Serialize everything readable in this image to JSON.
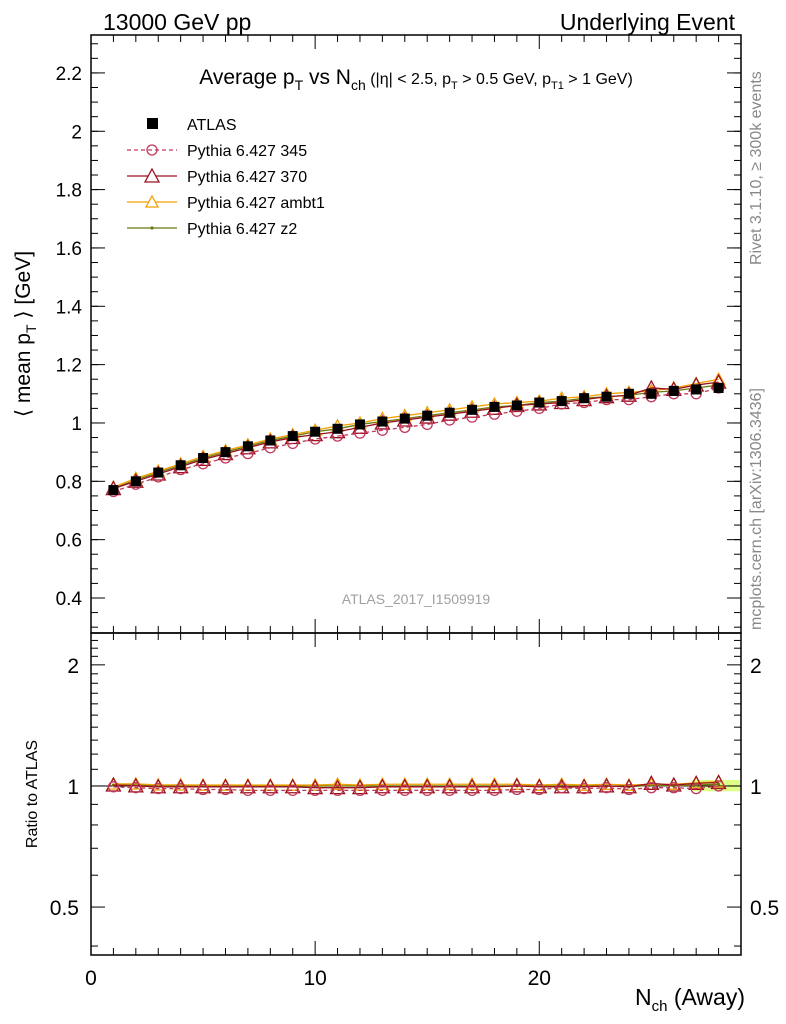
{
  "header": {
    "left": "13000 GeV pp",
    "right": "Underlying Event"
  },
  "side_labels": {
    "top": "Rivet 3.1.10, ≥ 300k events",
    "bottom": "mcplots.cern.ch [arXiv:1306.3436]"
  },
  "watermark": "ATLAS_2017_I1509919",
  "colors": {
    "atlas": "#000000",
    "p345": "#c0395a",
    "p370": "#9a1020",
    "ambt1": "#f0a000",
    "z2": "#6b7a10",
    "band": "#ddff88"
  },
  "chart_data": [
    {
      "type": "line",
      "title": {
        "prefix": "Average p",
        "sub1": "T",
        "mid": " vs N",
        "sub2": "ch",
        "cuts": " (|η| < 2.5, p",
        "sub3": "T",
        "cuts2": " > 0.5 GeV, p",
        "sub4": "T1",
        "cuts3": " > 1 GeV)"
      },
      "ylabel": {
        "pre": "⟨ mean p",
        "sub": "T",
        "post": " ⟩ [GeV]"
      },
      "xlim": [
        0,
        29
      ],
      "ylim": [
        0.28,
        2.33
      ],
      "yticks": [
        0.4,
        0.6,
        0.8,
        1,
        1.2,
        1.4,
        1.6,
        1.8,
        2,
        2.2
      ],
      "ytick_labels": [
        "0.4",
        "0.6",
        "0.8",
        "1",
        "1.2",
        "1.4",
        "1.6",
        "1.8",
        "2",
        "2.2"
      ],
      "legend_position": "top-left",
      "x": [
        1,
        2,
        3,
        4,
        5,
        6,
        7,
        8,
        9,
        10,
        11,
        12,
        13,
        14,
        15,
        16,
        17,
        18,
        19,
        20,
        21,
        22,
        23,
        24,
        25,
        26,
        27,
        28
      ],
      "series": [
        {
          "key": "atlas",
          "name": "ATLAS",
          "marker": "square",
          "values": [
            0.77,
            0.8,
            0.83,
            0.855,
            0.88,
            0.9,
            0.92,
            0.94,
            0.955,
            0.97,
            0.98,
            0.995,
            1.005,
            1.015,
            1.025,
            1.035,
            1.045,
            1.055,
            1.06,
            1.07,
            1.075,
            1.085,
            1.09,
            1.1,
            1.1,
            1.11,
            1.115,
            1.12
          ]
        },
        {
          "key": "p345",
          "name": "Pythia 6.427 345",
          "marker": "circle-open",
          "dash": true,
          "values": [
            0.765,
            0.79,
            0.815,
            0.84,
            0.86,
            0.88,
            0.895,
            0.915,
            0.93,
            0.945,
            0.955,
            0.965,
            0.975,
            0.985,
            0.995,
            1.01,
            1.02,
            1.03,
            1.04,
            1.05,
            1.065,
            1.07,
            1.08,
            1.08,
            1.09,
            1.1,
            1.1,
            1.12
          ]
        },
        {
          "key": "p370",
          "name": "Pythia 6.427 370",
          "marker": "triangle-open",
          "values": [
            0.775,
            0.8,
            0.825,
            0.85,
            0.875,
            0.895,
            0.915,
            0.935,
            0.95,
            0.96,
            0.97,
            0.985,
            1.0,
            1.01,
            1.02,
            1.03,
            1.04,
            1.05,
            1.06,
            1.065,
            1.07,
            1.08,
            1.09,
            1.095,
            1.12,
            1.115,
            1.13,
            1.14
          ]
        },
        {
          "key": "ambt1",
          "name": "Pythia 6.427 ambt1",
          "marker": "triangle-open",
          "values": [
            0.78,
            0.81,
            0.835,
            0.86,
            0.885,
            0.905,
            0.925,
            0.945,
            0.96,
            0.975,
            0.99,
            1.0,
            1.015,
            1.025,
            1.035,
            1.045,
            1.055,
            1.065,
            1.07,
            1.075,
            1.085,
            1.09,
            1.1,
            1.105,
            1.11,
            1.12,
            1.135,
            1.15
          ]
        },
        {
          "key": "z2",
          "name": "Pythia 6.427 z2",
          "marker": "dot",
          "values": [
            0.775,
            0.805,
            0.83,
            0.855,
            0.88,
            0.9,
            0.92,
            0.94,
            0.955,
            0.97,
            0.98,
            0.995,
            1.005,
            1.015,
            1.025,
            1.035,
            1.045,
            1.055,
            1.06,
            1.07,
            1.075,
            1.085,
            1.09,
            1.095,
            1.105,
            1.11,
            1.12,
            1.13
          ]
        }
      ]
    },
    {
      "type": "line",
      "ylabel": "Ratio to ATLAS",
      "xlabel": {
        "pre": "N",
        "sub": "ch",
        "post": " (Away)"
      },
      "xlim": [
        0,
        29
      ],
      "ylim": [
        0.38,
        2.4
      ],
      "log_y": true,
      "xticks": [
        0,
        10,
        20
      ],
      "xtick_labels": [
        "0",
        "10",
        "20"
      ],
      "yticks": [
        0.5,
        1,
        2
      ],
      "ytick_labels": [
        "0.5",
        "1",
        "2"
      ],
      "x": [
        1,
        2,
        3,
        4,
        5,
        6,
        7,
        8,
        9,
        10,
        11,
        12,
        13,
        14,
        15,
        16,
        17,
        18,
        19,
        20,
        21,
        22,
        23,
        24,
        25,
        26,
        27,
        28
      ],
      "series": [
        {
          "key": "p345",
          "values": [
            0.995,
            0.99,
            0.985,
            0.985,
            0.98,
            0.98,
            0.975,
            0.975,
            0.975,
            0.975,
            0.975,
            0.975,
            0.975,
            0.975,
            0.975,
            0.975,
            0.975,
            0.975,
            0.98,
            0.98,
            0.99,
            0.985,
            0.99,
            0.98,
            0.99,
            0.99,
            0.985,
            1.0
          ]
        },
        {
          "key": "p370",
          "values": [
            1.005,
            1.0,
            0.995,
            0.995,
            0.995,
            0.995,
            0.995,
            0.995,
            0.995,
            0.99,
            0.99,
            0.99,
            0.995,
            0.995,
            0.995,
            0.995,
            0.995,
            0.995,
            1.0,
            0.995,
            0.995,
            0.995,
            1.0,
            0.995,
            1.015,
            1.005,
            1.015,
            1.02
          ]
        },
        {
          "key": "ambt1",
          "values": [
            1.012,
            1.012,
            1.006,
            1.006,
            1.005,
            1.005,
            1.005,
            1.005,
            1.005,
            1.005,
            1.01,
            1.005,
            1.01,
            1.01,
            1.01,
            1.01,
            1.01,
            1.01,
            1.01,
            1.005,
            1.01,
            1.005,
            1.01,
            1.005,
            1.01,
            1.01,
            1.018,
            1.025
          ]
        },
        {
          "key": "z2",
          "values": [
            1.005,
            1.006,
            1.0,
            1.0,
            1.0,
            1.0,
            1.0,
            1.0,
            1.0,
            1.0,
            1.0,
            1.0,
            1.0,
            1.0,
            1.0,
            1.0,
            1.0,
            1.0,
            1.0,
            1.0,
            1.0,
            1.0,
            1.0,
            0.995,
            1.005,
            1.0,
            1.005,
            1.01
          ]
        }
      ]
    }
  ]
}
